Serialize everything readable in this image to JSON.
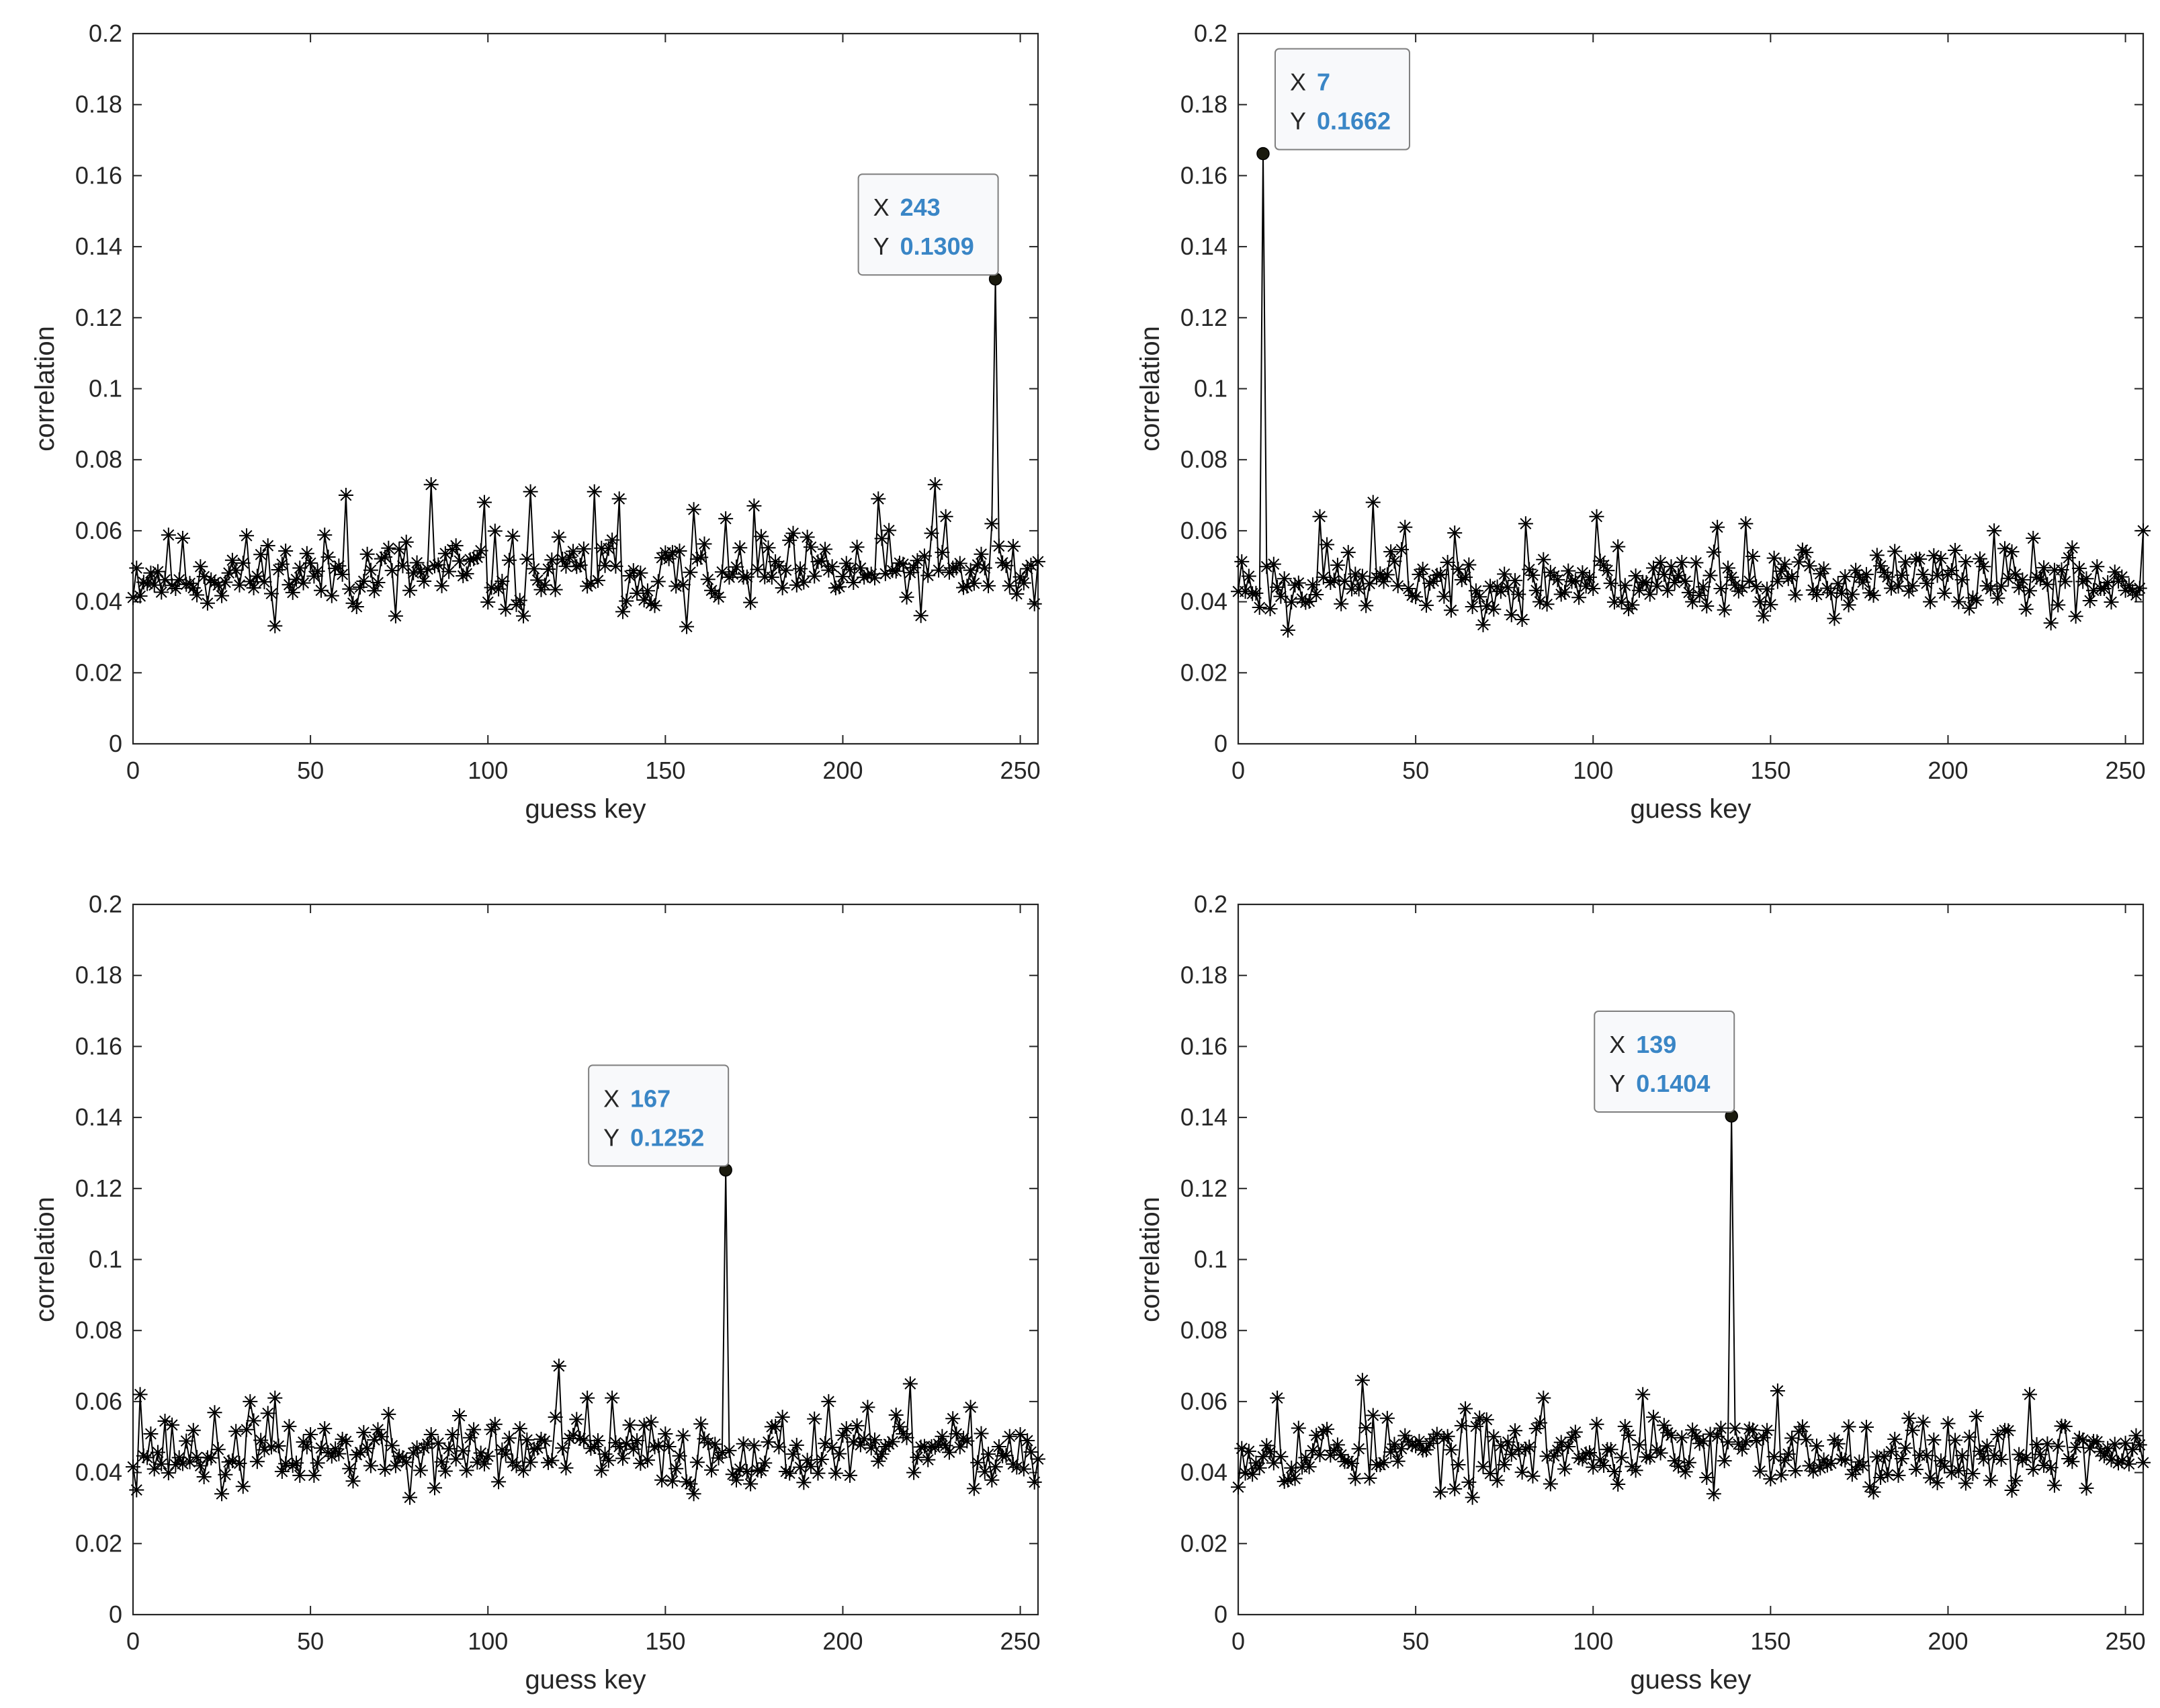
{
  "colors": {
    "line": "#000000",
    "axis": "#262626",
    "datatip_value": "#3a86c6",
    "datatip_border": "#7f7f7f",
    "datatip_fill": "#f8f9fb",
    "marker_dot": "#1a1a0e"
  },
  "chart_data": [
    {
      "type": "line",
      "xlabel": "guess key",
      "ylabel": "correlation",
      "xlim": [
        0,
        255
      ],
      "ylim": [
        0,
        0.2
      ],
      "xticks": [
        "0",
        "50",
        "100",
        "150",
        "200",
        "250"
      ],
      "yticks": [
        "0",
        "0.02",
        "0.04",
        "0.06",
        "0.08",
        "0.1",
        "0.12",
        "0.14",
        "0.16",
        "0.18",
        "0.2"
      ],
      "marker": "asterisk",
      "grid": false,
      "seed": 11,
      "baseline": 0.048,
      "spread": 0.009,
      "peaks": [
        [
          60,
          0.07
        ],
        [
          84,
          0.073
        ],
        [
          99,
          0.068
        ],
        [
          112,
          0.071
        ],
        [
          130,
          0.071
        ],
        [
          137,
          0.069
        ],
        [
          158,
          0.066
        ],
        [
          175,
          0.067
        ],
        [
          210,
          0.069
        ],
        [
          226,
          0.073
        ],
        [
          229,
          0.064
        ],
        [
          242,
          0.062
        ],
        [
          156,
          0.033
        ],
        [
          74,
          0.036
        ],
        [
          110,
          0.036
        ]
      ],
      "datatip": {
        "x": 243,
        "y": 0.1309,
        "x_key": "X",
        "y_key": "Y",
        "x_text": "243",
        "y_text": "0.1309"
      }
    },
    {
      "type": "line",
      "xlabel": "guess key",
      "ylabel": "correlation",
      "xlim": [
        0,
        255
      ],
      "ylim": [
        0,
        0.2
      ],
      "xticks": [
        "0",
        "50",
        "100",
        "150",
        "200",
        "250"
      ],
      "yticks": [
        "0",
        "0.02",
        "0.04",
        "0.06",
        "0.08",
        "0.1",
        "0.12",
        "0.14",
        "0.16",
        "0.18",
        "0.2"
      ],
      "marker": "asterisk",
      "grid": false,
      "seed": 23,
      "baseline": 0.046,
      "spread": 0.008,
      "peaks": [
        [
          23,
          0.064
        ],
        [
          38,
          0.068
        ],
        [
          47,
          0.061
        ],
        [
          81,
          0.062
        ],
        [
          101,
          0.064
        ],
        [
          135,
          0.061
        ],
        [
          143,
          0.062
        ],
        [
          213,
          0.06
        ],
        [
          255,
          0.06
        ],
        [
          14,
          0.032
        ],
        [
          80,
          0.035
        ],
        [
          229,
          0.034
        ]
      ],
      "datatip": {
        "x": 7,
        "y": 0.1662,
        "x_key": "X",
        "y_key": "Y",
        "x_text": "7",
        "y_text": "0.1662"
      }
    },
    {
      "type": "line",
      "xlabel": "guess key",
      "ylabel": "correlation",
      "xlim": [
        0,
        255
      ],
      "ylim": [
        0,
        0.2
      ],
      "xticks": [
        "0",
        "50",
        "100",
        "150",
        "200",
        "250"
      ],
      "yticks": [
        "0",
        "0.02",
        "0.04",
        "0.06",
        "0.08",
        "0.1",
        "0.12",
        "0.14",
        "0.16",
        "0.18",
        "0.2"
      ],
      "marker": "asterisk",
      "grid": false,
      "seed": 37,
      "baseline": 0.046,
      "spread": 0.008,
      "peaks": [
        [
          2,
          0.062
        ],
        [
          33,
          0.06
        ],
        [
          40,
          0.061
        ],
        [
          120,
          0.07
        ],
        [
          128,
          0.061
        ],
        [
          135,
          0.061
        ],
        [
          196,
          0.06
        ],
        [
          219,
          0.065
        ],
        [
          78,
          0.033
        ],
        [
          25,
          0.034
        ],
        [
          158,
          0.034
        ]
      ],
      "datatip": {
        "x": 167,
        "y": 0.1252,
        "x_key": "X",
        "y_key": "Y",
        "x_text": "167",
        "y_text": "0.1252"
      }
    },
    {
      "type": "line",
      "xlabel": "guess key",
      "ylabel": "correlation",
      "xlim": [
        0,
        255
      ],
      "ylim": [
        0,
        0.2
      ],
      "xticks": [
        "0",
        "50",
        "100",
        "150",
        "200",
        "250"
      ],
      "yticks": [
        "0",
        "0.02",
        "0.04",
        "0.06",
        "0.08",
        "0.1",
        "0.12",
        "0.14",
        "0.16",
        "0.18",
        "0.2"
      ],
      "marker": "asterisk",
      "grid": false,
      "seed": 53,
      "baseline": 0.046,
      "spread": 0.008,
      "peaks": [
        [
          35,
          0.066
        ],
        [
          86,
          0.061
        ],
        [
          114,
          0.062
        ],
        [
          152,
          0.063
        ],
        [
          223,
          0.062
        ],
        [
          11,
          0.061
        ],
        [
          66,
          0.033
        ],
        [
          134,
          0.034
        ],
        [
          218,
          0.035
        ]
      ],
      "datatip": {
        "x": 139,
        "y": 0.1404,
        "x_key": "X",
        "y_key": "Y",
        "x_text": "139",
        "y_text": "0.1404"
      }
    }
  ]
}
